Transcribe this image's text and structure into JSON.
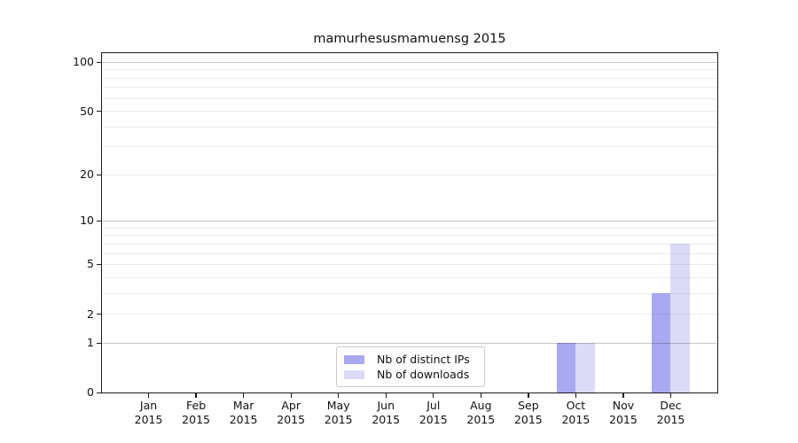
{
  "colors": {
    "grid_minor": "rgba(0,0,0,0.075)",
    "grid_major": "rgba(0,0,0,0.22)",
    "spine": "#1a1a1a",
    "text": "#111111",
    "legend_border": "#cccccc"
  },
  "chart_data": {
    "type": "bar",
    "title": "mamurhesusmamuensg 2015",
    "categories": [
      "Jan",
      "Feb",
      "Mar",
      "Apr",
      "May",
      "Jun",
      "Jul",
      "Aug",
      "Sep",
      "Oct",
      "Nov",
      "Dec"
    ],
    "year_label": "2015",
    "series": [
      {
        "name": "Nb of distinct IPs",
        "color": "#a9a9f1",
        "values": [
          0,
          0,
          0,
          0,
          0,
          0,
          0,
          0,
          0,
          1,
          0,
          3
        ]
      },
      {
        "name": "Nb of downloads",
        "color": "#dbdbf8",
        "values": [
          0,
          0,
          0,
          0,
          0,
          0,
          0,
          0,
          0,
          1,
          0,
          7
        ]
      }
    ],
    "yscale": "log1p",
    "ylim": [
      0,
      115
    ],
    "ytick_values": [
      0,
      1,
      2,
      5,
      10,
      20,
      50,
      100
    ],
    "ytick_labels": [
      "0",
      "1",
      "2",
      "5",
      "10",
      "20",
      "50",
      "100"
    ],
    "major_grid_values": [
      1,
      10,
      100
    ],
    "minor_grid_values": [
      2,
      3,
      4,
      5,
      6,
      7,
      8,
      9,
      20,
      30,
      40,
      50,
      60,
      70,
      80,
      90
    ],
    "grid": true,
    "legend_position": "lower-center-inside"
  }
}
